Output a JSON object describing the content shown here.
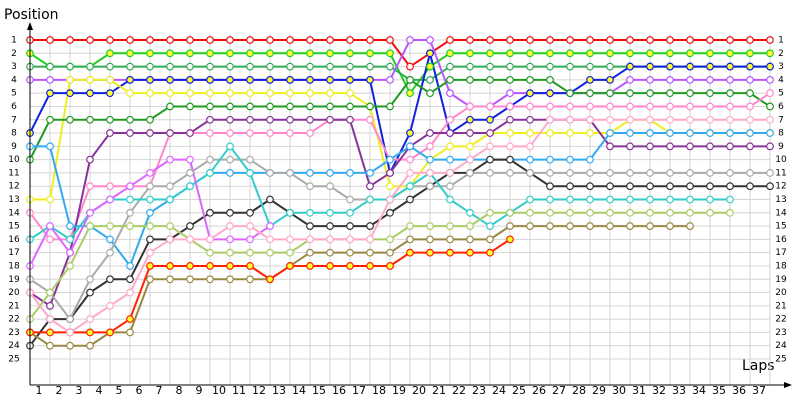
{
  "chart_data": {
    "type": "line",
    "y_title": "Position",
    "x_title": "Laps",
    "x": [
      0,
      1,
      2,
      3,
      4,
      5,
      6,
      7,
      8,
      9,
      10,
      11,
      12,
      13,
      14,
      15,
      16,
      17,
      18,
      19,
      20,
      21,
      22,
      23,
      24,
      25,
      26,
      27,
      28,
      29,
      30,
      31,
      32,
      33,
      34,
      35,
      36,
      37
    ],
    "xlim": [
      0,
      37
    ],
    "xticks": [
      1,
      2,
      3,
      4,
      5,
      6,
      7,
      8,
      9,
      10,
      11,
      12,
      13,
      14,
      15,
      16,
      17,
      18,
      19,
      20,
      21,
      22,
      23,
      24,
      25,
      26,
      27,
      28,
      29,
      30,
      31,
      32,
      33,
      34,
      35,
      36,
      37
    ],
    "ylim": [
      25,
      1
    ],
    "yticks": [
      1,
      2,
      3,
      4,
      5,
      6,
      7,
      8,
      9,
      10,
      11,
      12,
      13,
      14,
      15,
      16,
      17,
      18,
      19,
      20,
      21,
      22,
      23,
      24,
      25
    ],
    "grid": true,
    "series": [
      {
        "color": "#ee1111",
        "marker_fill": "#ffffff",
        "values": [
          1,
          1,
          1,
          1,
          1,
          1,
          1,
          1,
          1,
          1,
          1,
          1,
          1,
          1,
          1,
          1,
          1,
          1,
          1,
          3,
          2,
          1,
          1,
          1,
          1,
          1,
          1,
          1,
          1,
          1,
          1,
          1,
          1,
          1,
          1,
          1,
          1,
          1
        ]
      },
      {
        "color": "#22cc22",
        "marker_fill": "#ffff33",
        "values": [
          2,
          3,
          3,
          3,
          2,
          2,
          2,
          2,
          2,
          2,
          2,
          2,
          2,
          2,
          2,
          2,
          2,
          2,
          2,
          5,
          3,
          2,
          2,
          2,
          2,
          2,
          2,
          2,
          2,
          2,
          2,
          2,
          2,
          2,
          2,
          2,
          2,
          2
        ]
      },
      {
        "color": "#33aa55",
        "marker_fill": "#ffffff",
        "values": [
          3,
          3,
          3,
          3,
          3,
          3,
          3,
          3,
          3,
          3,
          3,
          3,
          3,
          3,
          3,
          3,
          3,
          3,
          3,
          4,
          4,
          3,
          3,
          3,
          3,
          3,
          3,
          3,
          3,
          3,
          3,
          3,
          3,
          3,
          3,
          3,
          3,
          3
        ]
      },
      {
        "color": "#bb55ff",
        "marker_fill": "#ffffff",
        "values": [
          4,
          4,
          4,
          4,
          4,
          4,
          4,
          4,
          4,
          4,
          4,
          4,
          4,
          4,
          4,
          4,
          4,
          4,
          4,
          1,
          1,
          5,
          6,
          6,
          5,
          5,
          5,
          5,
          5,
          5,
          4,
          4,
          4,
          4,
          4,
          4,
          4,
          4
        ]
      },
      {
        "color": "#1122dd",
        "marker_fill": "#ffff33",
        "values": [
          8,
          5,
          5,
          5,
          5,
          4,
          4,
          4,
          4,
          4,
          4,
          4,
          4,
          4,
          4,
          4,
          4,
          4,
          11,
          8,
          2,
          8,
          7,
          7,
          6,
          5,
          5,
          5,
          4,
          4,
          3,
          3,
          3,
          3,
          3,
          3,
          3,
          3
        ]
      },
      {
        "color": "#eeee22",
        "marker_fill": "#ffffff",
        "values": [
          13,
          13,
          4,
          4,
          4,
          5,
          5,
          5,
          5,
          5,
          5,
          5,
          5,
          5,
          5,
          5,
          5,
          6,
          12,
          12,
          10,
          9,
          9,
          8,
          8,
          8,
          8,
          8,
          8,
          8,
          7,
          7,
          8,
          8,
          8,
          8,
          8,
          8
        ]
      },
      {
        "color": "#229922",
        "marker_fill": "#ffffff",
        "values": [
          10,
          7,
          7,
          7,
          7,
          7,
          7,
          6,
          6,
          6,
          6,
          6,
          6,
          6,
          6,
          6,
          6,
          6,
          6,
          4,
          5,
          4,
          4,
          4,
          4,
          4,
          4,
          5,
          5,
          5,
          5,
          5,
          5,
          5,
          5,
          5,
          5,
          6
        ]
      },
      {
        "color": "#ff88cc",
        "marker_fill": "#ffffff",
        "values": [
          14,
          16,
          16,
          12,
          12,
          12,
          12,
          8,
          8,
          8,
          8,
          8,
          8,
          8,
          8,
          7,
          7,
          7,
          10,
          10,
          9,
          7,
          6,
          6,
          6,
          6,
          6,
          6,
          6,
          6,
          6,
          6,
          6,
          6,
          6,
          6,
          6,
          5
        ]
      },
      {
        "color": "#883399",
        "marker_fill": "#ffffff",
        "values": [
          20,
          21,
          17,
          10,
          8,
          8,
          8,
          8,
          8,
          7,
          7,
          7,
          7,
          7,
          7,
          7,
          7,
          12,
          11,
          9,
          8,
          8,
          8,
          8,
          7,
          7,
          7,
          7,
          7,
          9,
          9,
          9,
          9,
          9,
          9,
          9,
          9,
          9
        ]
      },
      {
        "color": "#33aaee",
        "marker_fill": "#ffffff",
        "values": [
          9,
          9,
          15,
          15,
          16,
          18,
          14,
          13,
          12,
          11,
          11,
          11,
          11,
          11,
          11,
          11,
          11,
          11,
          10,
          9,
          10,
          10,
          10,
          10,
          10,
          10,
          10,
          10,
          10,
          8,
          8,
          8,
          8,
          8,
          8,
          8,
          8,
          8
        ]
      },
      {
        "color": "#333333",
        "marker_fill": "#ffffff",
        "values": [
          24,
          22,
          22,
          20,
          19,
          19,
          16,
          16,
          15,
          14,
          14,
          14,
          13,
          14,
          15,
          15,
          15,
          15,
          14,
          13,
          12,
          11,
          11,
          10,
          10,
          11,
          12,
          12,
          12,
          12,
          12,
          12,
          12,
          12,
          12,
          12,
          12,
          12
        ]
      },
      {
        "color": "#aaaaaa",
        "marker_fill": "#ffffff",
        "values": [
          19,
          20,
          22,
          19,
          17,
          14,
          12,
          12,
          11,
          10,
          10,
          10,
          11,
          11,
          12,
          12,
          13,
          13,
          13,
          12,
          12,
          12,
          11,
          11,
          11,
          11,
          11,
          11,
          11,
          11,
          11,
          11,
          11,
          11,
          11,
          11,
          11,
          11
        ]
      },
      {
        "color": "#33cccc",
        "marker_fill": "#ffffff",
        "values": [
          16,
          15,
          16,
          14,
          13,
          13,
          13,
          13,
          12,
          11,
          9,
          11,
          15,
          14,
          14,
          14,
          14,
          13,
          13,
          12,
          11,
          13,
          14,
          15,
          14,
          13,
          13,
          13,
          13,
          13,
          13,
          13,
          13,
          13,
          13,
          13,
          null,
          null
        ]
      },
      {
        "color": "#aacc66",
        "marker_fill": "#ffffff",
        "values": [
          22,
          20,
          18,
          15,
          15,
          15,
          15,
          15,
          16,
          17,
          17,
          17,
          17,
          17,
          16,
          16,
          16,
          16,
          16,
          15,
          15,
          15,
          15,
          14,
          14,
          14,
          14,
          14,
          14,
          14,
          14,
          14,
          14,
          14,
          14,
          14,
          null,
          null
        ]
      },
      {
        "color": "#998844",
        "marker_fill": "#ffffff",
        "values": [
          23,
          24,
          24,
          24,
          23,
          23,
          19,
          19,
          19,
          19,
          19,
          19,
          19,
          18,
          17,
          17,
          17,
          17,
          17,
          16,
          16,
          16,
          16,
          16,
          15,
          15,
          15,
          15,
          15,
          15,
          15,
          15,
          15,
          15,
          null,
          null,
          null,
          null
        ]
      },
      {
        "color": "#ff2200",
        "marker_fill": "#ffff33",
        "values": [
          23,
          23,
          23,
          23,
          23,
          22,
          18,
          18,
          18,
          18,
          18,
          18,
          19,
          18,
          18,
          18,
          18,
          18,
          18,
          17,
          17,
          17,
          17,
          17,
          16,
          null,
          null,
          null,
          null,
          null,
          null,
          null,
          null,
          null,
          null,
          null,
          null,
          null
        ]
      },
      {
        "color": "#dd66ff",
        "marker_fill": "#ffffff",
        "values": [
          18,
          15,
          17,
          14,
          13,
          12,
          11,
          10,
          10,
          16,
          16,
          16,
          15,
          null,
          null,
          null,
          null,
          null,
          null,
          null,
          null,
          null,
          null,
          null,
          null,
          null,
          null,
          null,
          null,
          null,
          null,
          null,
          null,
          null,
          null,
          null,
          null,
          null
        ]
      },
      {
        "color": "#ffaacc",
        "marker_fill": "#ffffff",
        "values": [
          20,
          22,
          23,
          22,
          21,
          20,
          17,
          16,
          16,
          16,
          15,
          15,
          16,
          16,
          16,
          16,
          16,
          16,
          13,
          11,
          11,
          11,
          10,
          9,
          9,
          9,
          7,
          7,
          7,
          7,
          7,
          7,
          7,
          7,
          7,
          7,
          7,
          7
        ]
      }
    ]
  }
}
